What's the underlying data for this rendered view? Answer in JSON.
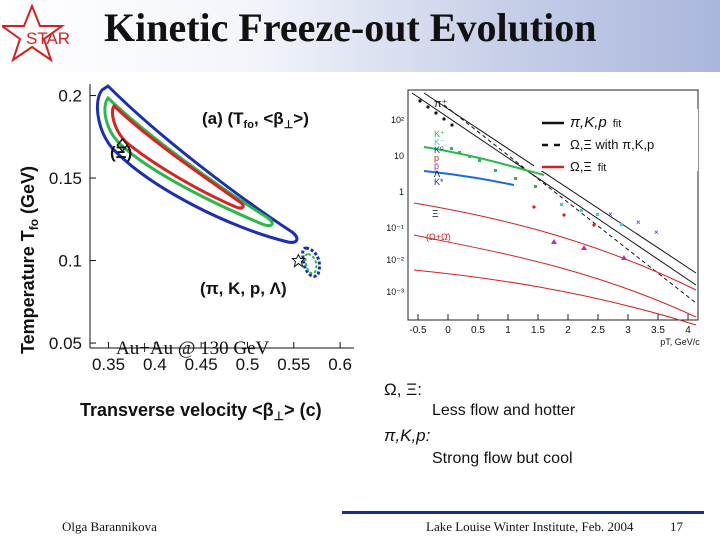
{
  "slide": {
    "title": "Kinetic Freeze-out Evolution",
    "logo_text": "STAR",
    "author": "Olga Barannikova",
    "venue": "Lake Louise Winter Institute, Feb. 2004",
    "page_number": "17"
  },
  "left_plot": {
    "panel_label": "(a) (T",
    "panel_label_sub": "fo",
    "panel_label_mid": ", <β",
    "panel_label_sub2": "⊥",
    "panel_label_end": ">)",
    "xlabel": "Transverse velocity <β",
    "xlabel_sub": "⊥",
    "xlabel_end": "> (c)",
    "ylabel": "Temperature T",
    "ylabel_sub": "fo",
    "ylabel_end": " (GeV)",
    "xticks": [
      "0.35",
      "0.4",
      "0.45",
      "0.5",
      "0.55",
      "0.6"
    ],
    "yticks": [
      "0.2",
      "0.15",
      "0.1",
      "0.05"
    ],
    "label_xi": "(Ξ)",
    "label_pikpl": "(π, K, p, Λ)",
    "system_label": "Au+Au @ 130 GeV"
  },
  "chart_data": [
    {
      "type": "scatter",
      "title": "(a) (Tfo, <β⊥>)",
      "xlabel": "Transverse velocity <β⊥> (c)",
      "ylabel": "Temperature Tfo (GeV)",
      "xlim": [
        0.33,
        0.615
      ],
      "ylim": [
        0.047,
        0.207
      ],
      "series": [
        {
          "name": "(Ξ)",
          "marker": "diamond",
          "x": [
            0.365
          ],
          "y": [
            0.17
          ]
        },
        {
          "name": "(π, K, p, Λ)",
          "marker": "star",
          "x": [
            0.555
          ],
          "y": [
            0.1
          ]
        }
      ]
    },
    {
      "type": "scatter",
      "xlabel": "pT, GeV/c",
      "xlim": [
        -0.5,
        4
      ],
      "log_y": true,
      "xticks": [
        "-0.5",
        "0",
        "0.5",
        "1",
        "1.5",
        "2",
        "2.5",
        "3",
        "3.5",
        "4"
      ],
      "yticks": [
        "10²",
        "10",
        "1",
        "10⁻¹",
        "10⁻²",
        "10⁻³"
      ],
      "legend": [
        {
          "symbol": "solid-black-line",
          "text": "π,K,p",
          "suffix": "fit"
        },
        {
          "symbol": "dashed-black-line",
          "text": "Ω,Ξ with π,K,p",
          "suffix": ""
        },
        {
          "symbol": "solid-red-line",
          "text": "Ω,Ξ",
          "suffix": "fit"
        }
      ],
      "species": [
        "π⁺",
        "K⁺",
        "K⁻",
        "K⁰",
        "p",
        "p̄",
        "Λ",
        "K*",
        "Ξ",
        "(Ω+Ω̄)"
      ]
    }
  ],
  "notes": {
    "omega_xi": "Ω, Ξ:",
    "omega_xi_text": "Less flow and hotter",
    "pi_k_p": "π,K,p:",
    "pi_k_p_text": "Strong flow but cool"
  },
  "colors": {
    "blue_contour": "#1a2fb5",
    "green_contour": "#2ab84a",
    "red_contour": "#e02020",
    "footer_rule": "#1d2d8a"
  }
}
